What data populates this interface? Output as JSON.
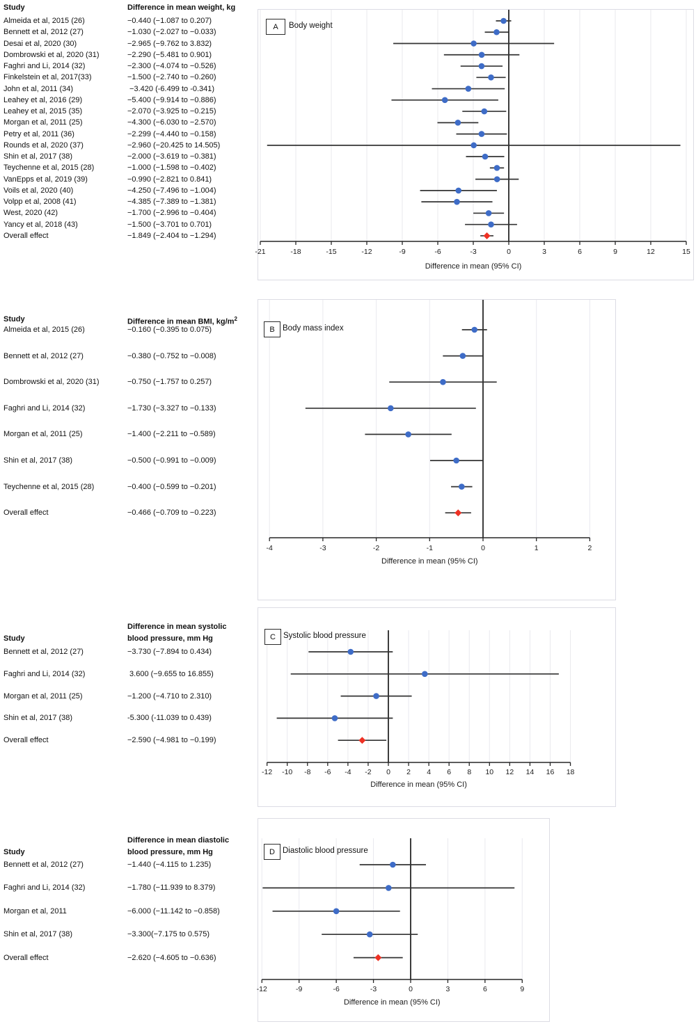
{
  "figure": {
    "axis_label": "Difference in mean (95% CI)"
  },
  "colors": {
    "marker_blue": "#3E6CC7",
    "marker_red": "#EE3124",
    "ci_line": "#333333",
    "axis": "#262626",
    "zero_line": "#1a1a1a",
    "grid": "#e9e9ee",
    "panel_border": "#dcdce4",
    "text": "#111111"
  },
  "chart_data": [
    {
      "type": "forest",
      "panel_label": "A",
      "title": "Body weight",
      "xlabel": "Difference in mean (95% CI)",
      "xlim": [
        -21,
        15
      ],
      "xtick_step": 3,
      "grid": true,
      "col_headers": {
        "study": "Study",
        "value_line1": "Difference in mean weight, kg"
      },
      "rows": [
        {
          "study": "Almeida et al, 2015 (26)",
          "value_text": "−0.440 (−1.087 to 0.207)",
          "mean": -0.44,
          "lo": -1.087,
          "hi": 0.207,
          "overall": false
        },
        {
          "study": "Bennett et al, 2012 (27)",
          "value_text": "−1.030 (−2.027 to −0.033)",
          "mean": -1.03,
          "lo": -2.027,
          "hi": -0.033,
          "overall": false
        },
        {
          "study": "Desai et al, 2020 (30)",
          "value_text": "−2.965 (−9.762 to 3.832)",
          "mean": -2.965,
          "lo": -9.762,
          "hi": 3.832,
          "overall": false
        },
        {
          "study": "Dombrowski et al, 2020 (31)",
          "value_text": "−2.290 (−5.481 to 0.901)",
          "mean": -2.29,
          "lo": -5.481,
          "hi": 0.901,
          "overall": false
        },
        {
          "study": "Faghri and Li, 2014 (32)",
          "value_text": "−2.300 (−4.074 to −0.526)",
          "mean": -2.3,
          "lo": -4.074,
          "hi": -0.526,
          "overall": false
        },
        {
          "study": "Finkelstein et al, 2017(33)",
          "value_text": "−1.500 (−2.740 to −0.260)",
          "mean": -1.5,
          "lo": -2.74,
          "hi": -0.26,
          "overall": false
        },
        {
          "study": "John et al, 2011 (34)",
          "value_text": " −3.420 (-6.499 to -0.341)",
          "mean": -3.42,
          "lo": -6.499,
          "hi": -0.341,
          "overall": false
        },
        {
          "study": "Leahey et al, 2016 (29)",
          "value_text": "−5.400 (−9.914 to −0.886)",
          "mean": -5.4,
          "lo": -9.914,
          "hi": -0.886,
          "overall": false
        },
        {
          "study": "Leahey et al, 2015 (35)",
          "value_text": "−2.070 (−3.925 to −0.215)",
          "mean": -2.07,
          "lo": -3.925,
          "hi": -0.215,
          "overall": false
        },
        {
          "study": "Morgan et al, 2011 (25)",
          "value_text": "−4.300 (−6.030 to −2.570)",
          "mean": -4.3,
          "lo": -6.03,
          "hi": -2.57,
          "overall": false
        },
        {
          "study": "Petry et al, 2011 (36)",
          "value_text": "−2.299 (−4.440 to −0.158)",
          "mean": -2.299,
          "lo": -4.44,
          "hi": -0.158,
          "overall": false
        },
        {
          "study": "Rounds et al, 2020 (37)",
          "value_text": "−2.960 (−20.425 to 14.505)",
          "mean": -2.96,
          "lo": -20.425,
          "hi": 14.505,
          "overall": false
        },
        {
          "study": "Shin et al, 2017 (38)",
          "value_text": "−2.000 (−3.619 to −0.381)",
          "mean": -2.0,
          "lo": -3.619,
          "hi": -0.381,
          "overall": false
        },
        {
          "study": "Teychenne et al, 2015 (28)",
          "value_text": "−1.000 (−1.598 to −0.402)",
          "mean": -1.0,
          "lo": -1.598,
          "hi": -0.402,
          "overall": false
        },
        {
          "study": "VanEpps et al, 2019 (39)",
          "value_text": "−0.990 (−2.821 to 0.841)",
          "mean": -0.99,
          "lo": -2.821,
          "hi": 0.841,
          "overall": false
        },
        {
          "study": "Voils et al, 2020 (40)",
          "value_text": "−4.250 (−7.496 to −1.004)",
          "mean": -4.25,
          "lo": -7.496,
          "hi": -1.004,
          "overall": false
        },
        {
          "study": "Volpp et al, 2008 (41)",
          "value_text": "−4.385 (−7.389 to −1.381)",
          "mean": -4.385,
          "lo": -7.389,
          "hi": -1.381,
          "overall": false
        },
        {
          "study": "West, 2020 (42)",
          "value_text": "−1.700 (−2.996 to −0.404)",
          "mean": -1.7,
          "lo": -2.996,
          "hi": -0.404,
          "overall": false
        },
        {
          "study": "Yancy et al, 2018 (43)",
          "value_text": "−1.500 (−3.701 to 0.701)",
          "mean": -1.5,
          "lo": -3.701,
          "hi": 0.701,
          "overall": false
        },
        {
          "study": "Overall effect",
          "value_text": "−1.849 (−2.404 to −1.294)",
          "mean": -1.849,
          "lo": -2.404,
          "hi": -1.294,
          "overall": true
        }
      ]
    },
    {
      "type": "forest",
      "panel_label": "B",
      "title": "Body mass index",
      "xlabel": "Difference in mean (95% CI)",
      "xlim": [
        -4,
        2
      ],
      "xtick_step": 1,
      "grid": true,
      "col_headers": {
        "study": "Study",
        "value_line1": "Difference in mean BMI, kg/m",
        "value_sup": "2"
      },
      "rows": [
        {
          "study": "Almeida et al, 2015 (26)",
          "value_text": "−0.160 (−0.395 to 0.075)",
          "mean": -0.16,
          "lo": -0.395,
          "hi": 0.075,
          "overall": false
        },
        {
          "study": "Bennett et al, 2012 (27)",
          "value_text": "−0.380 (−0.752 to −0.008)",
          "mean": -0.38,
          "lo": -0.752,
          "hi": -0.008,
          "overall": false
        },
        {
          "study": "Dombrowski et al, 2020 (31)",
          "value_text": "−0.750 (−1.757 to 0.257)",
          "mean": -0.75,
          "lo": -1.757,
          "hi": 0.257,
          "overall": false
        },
        {
          "study": "Faghri and Li, 2014 (32)",
          "value_text": "−1.730 (−3.327 to −0.133)",
          "mean": -1.73,
          "lo": -3.327,
          "hi": -0.133,
          "overall": false
        },
        {
          "study": "Morgan et al, 2011 (25)",
          "value_text": "−1.400 (−2.211 to −0.589)",
          "mean": -1.4,
          "lo": -2.211,
          "hi": -0.589,
          "overall": false
        },
        {
          "study": "Shin et al, 2017 (38)",
          "value_text": "−0.500 (−0.991 to −0.009)",
          "mean": -0.5,
          "lo": -0.991,
          "hi": -0.009,
          "overall": false
        },
        {
          "study": "Teychenne et al, 2015 (28)",
          "value_text": "−0.400 (−0.599 to −0.201)",
          "mean": -0.4,
          "lo": -0.599,
          "hi": -0.201,
          "overall": false
        },
        {
          "study": "Overall effect",
          "value_text": "−0.466 (−0.709 to −0.223)",
          "mean": -0.466,
          "lo": -0.709,
          "hi": -0.223,
          "overall": true
        }
      ]
    },
    {
      "type": "forest",
      "panel_label": "C",
      "title": "Systolic blood pressure",
      "xlabel": "Difference in mean (95% CI)",
      "xlim": [
        -12,
        18
      ],
      "xtick_step": 2,
      "grid": true,
      "col_headers": {
        "study": "Study",
        "value_line1": "Difference in mean systolic",
        "value_line2": "blood pressure, mm Hg"
      },
      "rows": [
        {
          "study": "Bennett et al, 2012 (27)",
          "value_text": "−3.730 (−7.894 to 0.434)",
          "mean": -3.73,
          "lo": -7.894,
          "hi": 0.434,
          "overall": false
        },
        {
          "study": "Faghri and Li, 2014 (32)",
          "value_text": " 3.600 (−9.655 to 16.855)",
          "mean": 3.6,
          "lo": -9.655,
          "hi": 16.855,
          "overall": false
        },
        {
          "study": "Morgan et al, 2011 (25)",
          "value_text": "−1.200 (−4.710 to 2.310)",
          "mean": -1.2,
          "lo": -4.71,
          "hi": 2.31,
          "overall": false
        },
        {
          "study": "Shin et al, 2017 (38)",
          "value_text": "-5.300 (-11.039 to 0.439)",
          "mean": -5.3,
          "lo": -11.039,
          "hi": 0.439,
          "overall": false
        },
        {
          "study": "Overall effect",
          "value_text": "−2.590 (−4.981 to −0.199)",
          "mean": -2.59,
          "lo": -4.981,
          "hi": -0.199,
          "overall": true
        }
      ]
    },
    {
      "type": "forest",
      "panel_label": "D",
      "title": "Diastolic blood pressure",
      "xlabel": "Difference in mean (95% CI)",
      "xlim": [
        -12,
        9
      ],
      "xtick_step": 3,
      "grid": true,
      "col_headers": {
        "study": "Study",
        "value_line1": "Difference in mean diastolic",
        "value_line2": "blood pressure, mm Hg"
      },
      "rows": [
        {
          "study": "Bennett et al, 2012 (27)",
          "value_text": "−1.440 (−4.115 to 1.235)",
          "mean": -1.44,
          "lo": -4.115,
          "hi": 1.235,
          "overall": false
        },
        {
          "study": "Faghri and Li, 2014 (32)",
          "value_text": "−1.780 (−11.939 to 8.379)",
          "mean": -1.78,
          "lo": -11.939,
          "hi": 8.379,
          "overall": false
        },
        {
          "study": "Morgan et al, 2011",
          "value_text": "−6.000 (−11.142 to −0.858)",
          "mean": -6.0,
          "lo": -11.142,
          "hi": -0.858,
          "overall": false
        },
        {
          "study": "Shin et al, 2017 (38)",
          "value_text": "−3.300(−7.175 to 0.575)",
          "mean": -3.3,
          "lo": -7.175,
          "hi": 0.575,
          "overall": false
        },
        {
          "study": "Overall effect",
          "value_text": "−2.620 (−4.605 to −0.636)",
          "mean": -2.62,
          "lo": -4.605,
          "hi": -0.636,
          "overall": true
        }
      ]
    }
  ]
}
